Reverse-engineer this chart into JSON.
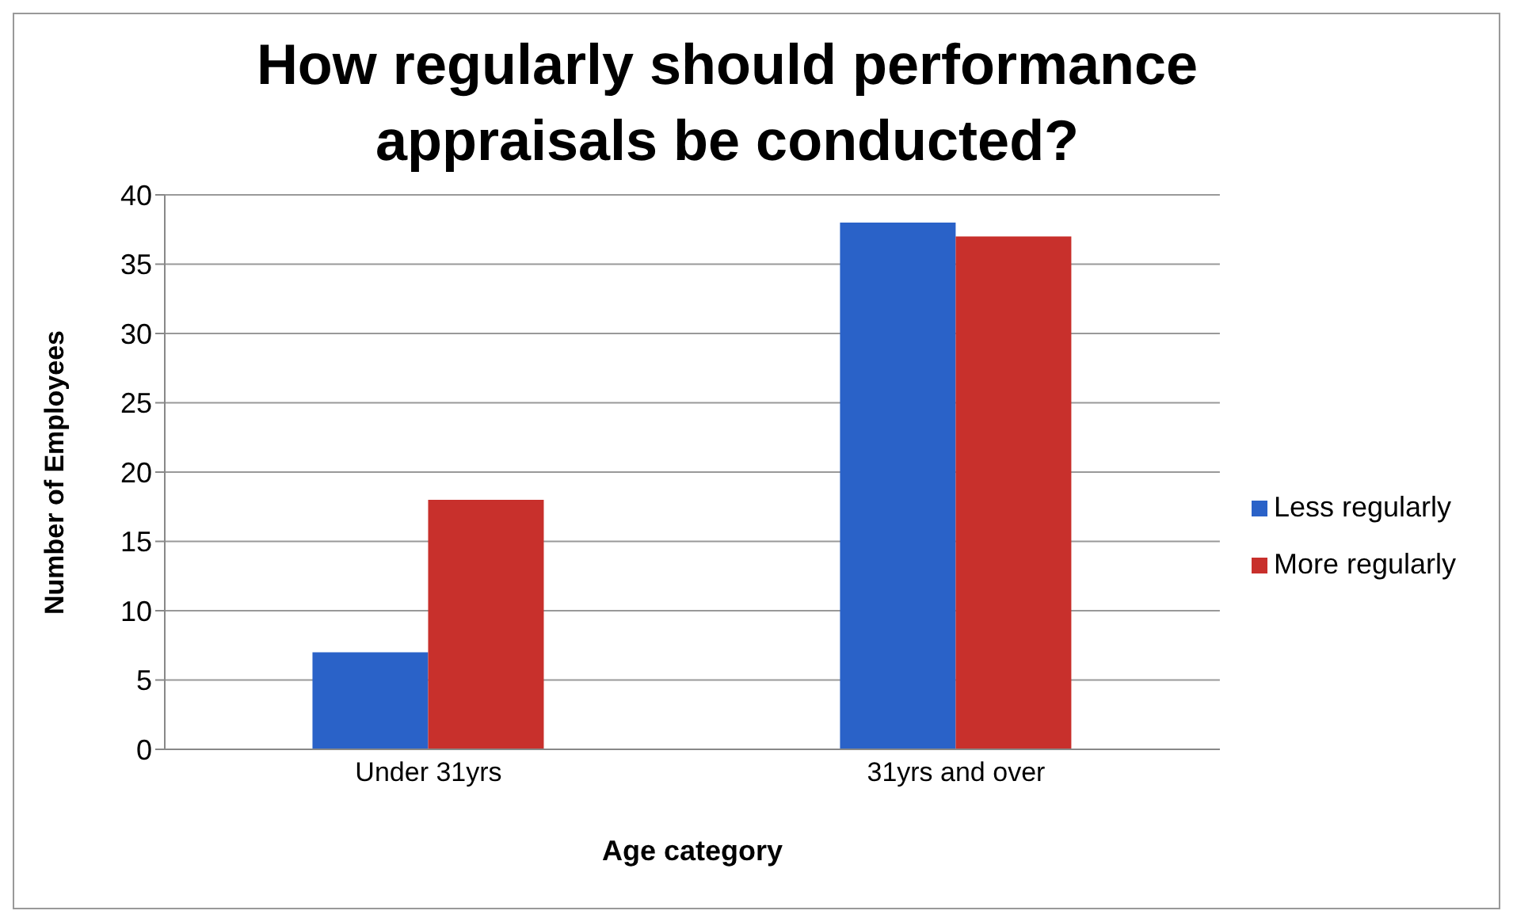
{
  "chart_data": {
    "type": "bar",
    "title": "How regularly should performance appraisals be conducted?",
    "xlabel": "Age category",
    "ylabel": "Number of Employees",
    "categories": [
      "Under 31yrs",
      "31yrs  and over"
    ],
    "series": [
      {
        "name": "Less regularly",
        "color": "#2a62c8",
        "values": [
          7,
          38
        ]
      },
      {
        "name": "More regularly",
        "color": "#c8302c",
        "values": [
          18,
          37
        ]
      }
    ],
    "ylim": [
      0,
      40
    ],
    "yticks": [
      0,
      5,
      10,
      15,
      20,
      25,
      30,
      35,
      40
    ],
    "grid": "y",
    "legend": "right"
  }
}
